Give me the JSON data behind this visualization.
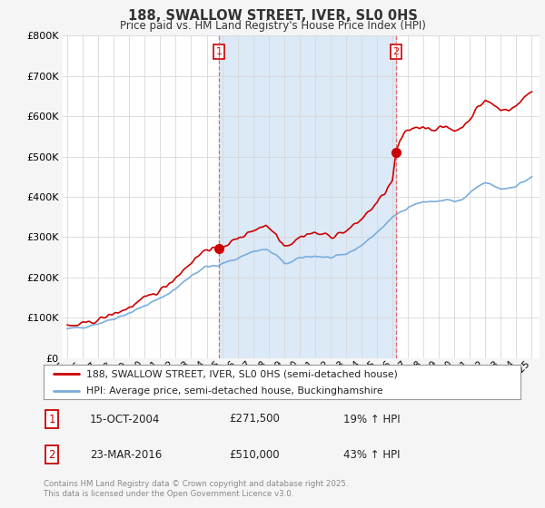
{
  "title": "188, SWALLOW STREET, IVER, SL0 0HS",
  "subtitle": "Price paid vs. HM Land Registry's House Price Index (HPI)",
  "legend_line1": "188, SWALLOW STREET, IVER, SL0 0HS (semi-detached house)",
  "legend_line2": "HPI: Average price, semi-detached house, Buckinghamshire",
  "sale1_date": "15-OCT-2004",
  "sale1_price": 271500,
  "sale1_label": "19% ↑ HPI",
  "sale2_date": "23-MAR-2016",
  "sale2_price": 510000,
  "sale2_label": "43% ↑ HPI",
  "footer": "Contains HM Land Registry data © Crown copyright and database right 2025.\nThis data is licensed under the Open Government Licence v3.0.",
  "red_color": "#cc0000",
  "blue_color": "#7aaddc",
  "span_color": "#dce9f7",
  "plot_bg_color": "#ffffff",
  "fig_bg_color": "#f5f5f5",
  "ylim": [
    0,
    800000
  ],
  "sale1_x": 2004.79,
  "sale2_x": 2016.23
}
